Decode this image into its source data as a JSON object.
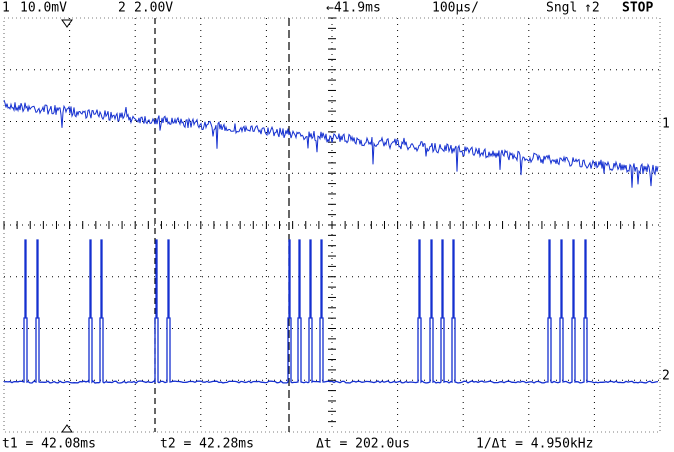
{
  "header": {
    "ch1": "1",
    "ch1_scale": "10.0mV",
    "ch2": "2",
    "ch2_scale": "2.00V",
    "delay": "←41.9ms",
    "timebase": "100µs/",
    "mode": "Sngl",
    "trigger": "↑2",
    "status": "STOP"
  },
  "footer": {
    "t1": "t1 = 42.08ms",
    "t2": "t2 = 42.28ms",
    "dt": "Δt = 202.0us",
    "inv_dt": "1/Δt = 4.950kHz"
  },
  "markers": {
    "ch1": "1",
    "ch2": "2"
  }
}
